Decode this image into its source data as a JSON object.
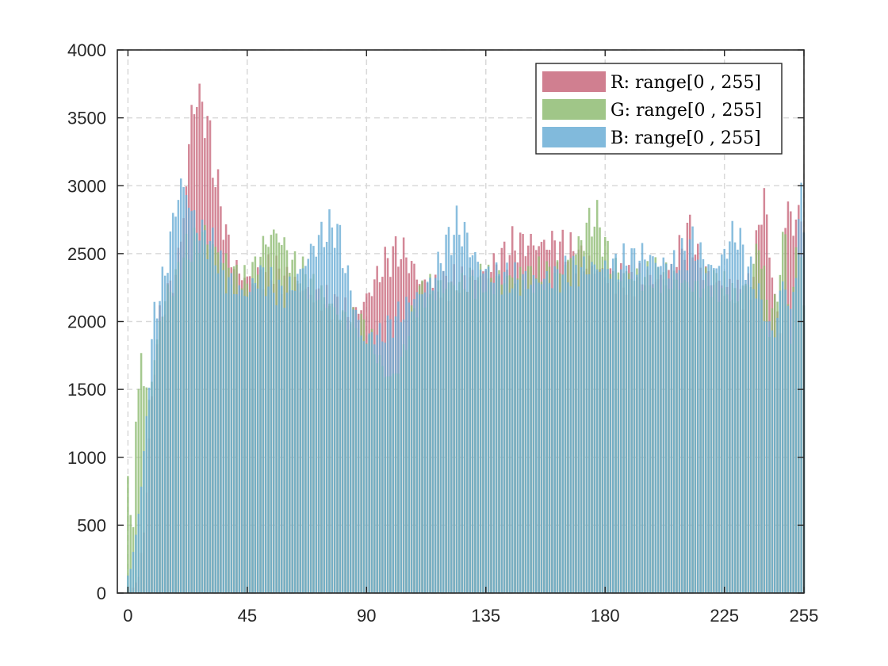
{
  "chart_data": {
    "type": "bar",
    "title": "",
    "xlabel": "",
    "ylabel": "",
    "xlim": [
      -4,
      255
    ],
    "ylim": [
      0,
      4000
    ],
    "x_ticks": [
      0,
      45,
      90,
      135,
      180,
      225,
      255
    ],
    "y_ticks": [
      0,
      500,
      1000,
      1500,
      2000,
      2500,
      3000,
      3500,
      4000
    ],
    "x_tick_labels": [
      "0",
      "45",
      "90",
      "135",
      "180",
      "225",
      "255"
    ],
    "y_tick_labels": [
      "0",
      "500",
      "1000",
      "1500",
      "2000",
      "2500",
      "3000",
      "3500",
      "4000"
    ],
    "grid": true,
    "legend_position": "top-right",
    "bins": "0-255 step 1",
    "series": [
      {
        "name": "R: range[0 , 255]",
        "color": "#c8697d",
        "control_points": [
          [
            0,
            0
          ],
          [
            2,
            40
          ],
          [
            4,
            120
          ],
          [
            6,
            450
          ],
          [
            8,
            1100
          ],
          [
            10,
            1700
          ],
          [
            12,
            2000
          ],
          [
            14,
            2150
          ],
          [
            16,
            2250
          ],
          [
            18,
            2350
          ],
          [
            20,
            2600
          ],
          [
            22,
            3000
          ],
          [
            24,
            3550
          ],
          [
            26,
            3640
          ],
          [
            28,
            3600
          ],
          [
            30,
            3450
          ],
          [
            32,
            3200
          ],
          [
            34,
            2950
          ],
          [
            36,
            2750
          ],
          [
            38,
            2550
          ],
          [
            40,
            2420
          ],
          [
            42,
            2350
          ],
          [
            44,
            2330
          ],
          [
            46,
            2300
          ],
          [
            48,
            2320
          ],
          [
            50,
            2340
          ],
          [
            52,
            2360
          ],
          [
            55,
            2380
          ],
          [
            60,
            2300
          ],
          [
            65,
            2250
          ],
          [
            70,
            2200
          ],
          [
            75,
            2150
          ],
          [
            80,
            2100
          ],
          [
            84,
            2050
          ],
          [
            88,
            2100
          ],
          [
            92,
            2250
          ],
          [
            96,
            2400
          ],
          [
            100,
            2500
          ],
          [
            103,
            2520
          ],
          [
            106,
            2450
          ],
          [
            110,
            2300
          ],
          [
            115,
            2250
          ],
          [
            120,
            2280
          ],
          [
            125,
            2300
          ],
          [
            130,
            2320
          ],
          [
            135,
            2350
          ],
          [
            140,
            2450
          ],
          [
            145,
            2550
          ],
          [
            150,
            2580
          ],
          [
            155,
            2560
          ],
          [
            160,
            2580
          ],
          [
            165,
            2540
          ],
          [
            170,
            2480
          ],
          [
            175,
            2400
          ],
          [
            180,
            2350
          ],
          [
            185,
            2300
          ],
          [
            190,
            2310
          ],
          [
            195,
            2330
          ],
          [
            200,
            2300
          ],
          [
            205,
            2350
          ],
          [
            210,
            2600
          ],
          [
            212,
            2680
          ],
          [
            215,
            2450
          ],
          [
            220,
            2300
          ],
          [
            225,
            2250
          ],
          [
            230,
            2200
          ],
          [
            235,
            2250
          ],
          [
            238,
            2700
          ],
          [
            240,
            2950
          ],
          [
            242,
            2500
          ],
          [
            244,
            2200
          ],
          [
            246,
            1900
          ],
          [
            248,
            2700
          ],
          [
            250,
            2850
          ],
          [
            252,
            2650
          ],
          [
            254,
            2900
          ],
          [
            255,
            2000
          ]
        ]
      },
      {
        "name": "G: range[0 , 255]",
        "color": "#8fbc73",
        "control_points": [
          [
            0,
            820
          ],
          [
            1,
            600
          ],
          [
            2,
            500
          ],
          [
            3,
            1200
          ],
          [
            4,
            1500
          ],
          [
            5,
            1850
          ],
          [
            6,
            1500
          ],
          [
            8,
            1450
          ],
          [
            10,
            1700
          ],
          [
            12,
            2000
          ],
          [
            14,
            2150
          ],
          [
            16,
            2250
          ],
          [
            18,
            2300
          ],
          [
            20,
            2450
          ],
          [
            22,
            2500
          ],
          [
            24,
            2550
          ],
          [
            26,
            2600
          ],
          [
            28,
            2650
          ],
          [
            30,
            2600
          ],
          [
            32,
            2550
          ],
          [
            34,
            2500
          ],
          [
            36,
            2450
          ],
          [
            38,
            2400
          ],
          [
            40,
            2350
          ],
          [
            42,
            2300
          ],
          [
            44,
            2280
          ],
          [
            46,
            2320
          ],
          [
            48,
            2400
          ],
          [
            50,
            2500
          ],
          [
            52,
            2580
          ],
          [
            55,
            2650
          ],
          [
            58,
            2600
          ],
          [
            60,
            2500
          ],
          [
            63,
            2400
          ],
          [
            66,
            2350
          ],
          [
            70,
            2250
          ],
          [
            75,
            2150
          ],
          [
            80,
            2050
          ],
          [
            85,
            2000
          ],
          [
            90,
            1950
          ],
          [
            93,
            1800
          ],
          [
            96,
            1650
          ],
          [
            99,
            1580
          ],
          [
            102,
            1650
          ],
          [
            105,
            1850
          ],
          [
            108,
            2100
          ],
          [
            110,
            2200
          ],
          [
            113,
            2220
          ],
          [
            116,
            2250
          ],
          [
            120,
            2260
          ],
          [
            125,
            2280
          ],
          [
            130,
            2300
          ],
          [
            135,
            2300
          ],
          [
            140,
            2310
          ],
          [
            145,
            2320
          ],
          [
            150,
            2330
          ],
          [
            155,
            2340
          ],
          [
            160,
            2350
          ],
          [
            165,
            2400
          ],
          [
            170,
            2550
          ],
          [
            174,
            2720
          ],
          [
            176,
            2770
          ],
          [
            178,
            2700
          ],
          [
            180,
            2550
          ],
          [
            183,
            2400
          ],
          [
            186,
            2350
          ],
          [
            190,
            2340
          ],
          [
            195,
            2320
          ],
          [
            200,
            2360
          ],
          [
            205,
            2300
          ],
          [
            210,
            2280
          ],
          [
            215,
            2250
          ],
          [
            220,
            2300
          ],
          [
            225,
            2250
          ],
          [
            230,
            2200
          ],
          [
            235,
            2300
          ],
          [
            238,
            2600
          ],
          [
            240,
            2300
          ],
          [
            242,
            2000
          ],
          [
            244,
            2100
          ],
          [
            246,
            2400
          ],
          [
            248,
            2650
          ],
          [
            250,
            1800
          ],
          [
            252,
            2600
          ],
          [
            254,
            2450
          ],
          [
            255,
            2100
          ]
        ]
      },
      {
        "name": "B: range[0 , 255]",
        "color": "#6baed6",
        "control_points": [
          [
            0,
            130
          ],
          [
            1,
            180
          ],
          [
            2,
            300
          ],
          [
            3,
            420
          ],
          [
            4,
            600
          ],
          [
            5,
            800
          ],
          [
            6,
            1000
          ],
          [
            8,
            1600
          ],
          [
            10,
            2050
          ],
          [
            12,
            2200
          ],
          [
            14,
            2350
          ],
          [
            16,
            2600
          ],
          [
            18,
            2850
          ],
          [
            20,
            3000
          ],
          [
            22,
            2950
          ],
          [
            24,
            2800
          ],
          [
            26,
            2700
          ],
          [
            28,
            2650
          ],
          [
            30,
            2600
          ],
          [
            32,
            2550
          ],
          [
            34,
            2450
          ],
          [
            36,
            2350
          ],
          [
            38,
            2300
          ],
          [
            40,
            2250
          ],
          [
            42,
            2230
          ],
          [
            44,
            2200
          ],
          [
            46,
            2220
          ],
          [
            48,
            2300
          ],
          [
            50,
            2350
          ],
          [
            52,
            2300
          ],
          [
            55,
            2250
          ],
          [
            58,
            2200
          ],
          [
            60,
            2220
          ],
          [
            63,
            2280
          ],
          [
            66,
            2400
          ],
          [
            70,
            2550
          ],
          [
            74,
            2650
          ],
          [
            78,
            2700
          ],
          [
            80,
            2600
          ],
          [
            82,
            2400
          ],
          [
            85,
            2150
          ],
          [
            88,
            1900
          ],
          [
            90,
            1850
          ],
          [
            92,
            1900
          ],
          [
            96,
            1900
          ],
          [
            100,
            2000
          ],
          [
            105,
            2100
          ],
          [
            110,
            2200
          ],
          [
            115,
            2300
          ],
          [
            118,
            2450
          ],
          [
            121,
            2600
          ],
          [
            124,
            2700
          ],
          [
            127,
            2650
          ],
          [
            130,
            2500
          ],
          [
            133,
            2400
          ],
          [
            136,
            2350
          ],
          [
            140,
            2330
          ],
          [
            145,
            2310
          ],
          [
            150,
            2300
          ],
          [
            155,
            2300
          ],
          [
            160,
            2320
          ],
          [
            165,
            2350
          ],
          [
            170,
            2380
          ],
          [
            175,
            2400
          ],
          [
            180,
            2390
          ],
          [
            185,
            2420
          ],
          [
            190,
            2450
          ],
          [
            195,
            2480
          ],
          [
            200,
            2430
          ],
          [
            205,
            2400
          ],
          [
            210,
            2500
          ],
          [
            213,
            2580
          ],
          [
            216,
            2480
          ],
          [
            220,
            2380
          ],
          [
            224,
            2450
          ],
          [
            227,
            2600
          ],
          [
            230,
            2650
          ],
          [
            232,
            2500
          ],
          [
            235,
            2350
          ],
          [
            238,
            2200
          ],
          [
            241,
            2000
          ],
          [
            244,
            1900
          ],
          [
            246,
            2200
          ],
          [
            248,
            2300
          ],
          [
            250,
            2000
          ],
          [
            252,
            2450
          ],
          [
            254,
            2900
          ],
          [
            255,
            2800
          ]
        ]
      }
    ]
  }
}
